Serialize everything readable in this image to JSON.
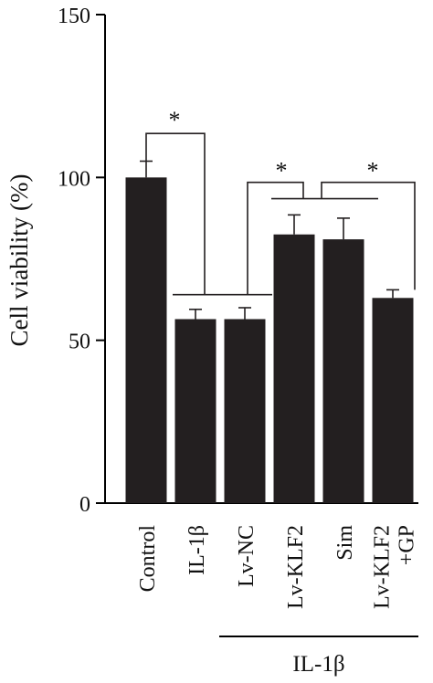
{
  "chart_data": {
    "type": "bar",
    "title": "",
    "xlabel": "",
    "ylabel": "Cell viability (%)",
    "ylim": [
      0,
      150
    ],
    "yticks": [
      0,
      50,
      100,
      150
    ],
    "grid": false,
    "categories": [
      "Control",
      "IL-1β",
      "Lv-NC",
      "Lv-KLF2",
      "Sim",
      "Lv-KLF2 +GP"
    ],
    "category_lines": [
      [
        "Control"
      ],
      [
        "IL-1β"
      ],
      [
        "Lv-NC"
      ],
      [
        "Lv-KLF2"
      ],
      [
        "Sim"
      ],
      [
        "Lv-KLF2",
        "+GP"
      ]
    ],
    "values": [
      100,
      56.5,
      56.5,
      82.5,
      81,
      63
    ],
    "errors": [
      5,
      3,
      3.5,
      6,
      6.5,
      2.5
    ],
    "bar_color": "#231f20",
    "group_label": "IL-1β",
    "significance_marks": [
      "*",
      "*",
      "*"
    ]
  }
}
